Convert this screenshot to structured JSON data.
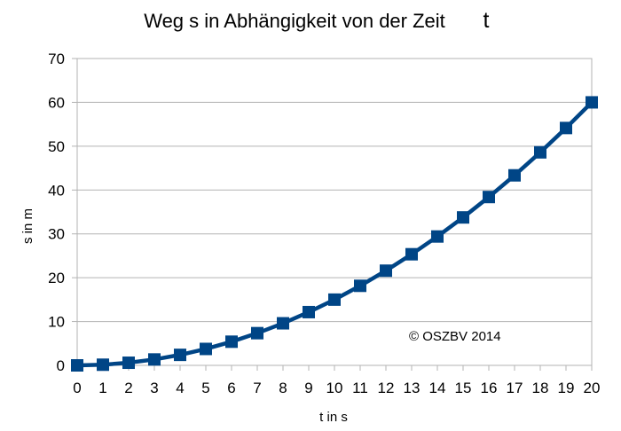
{
  "chart_data": {
    "type": "line",
    "title": "Weg s in Abhängigkeit von der Zeit",
    "title_suffix": "t",
    "xlabel": "t in s",
    "ylabel": "s in m",
    "annotation": "© OSZBV 2014",
    "x": [
      0,
      1,
      2,
      3,
      4,
      5,
      6,
      7,
      8,
      9,
      10,
      11,
      12,
      13,
      14,
      15,
      16,
      17,
      18,
      19,
      20
    ],
    "series": [
      {
        "values": [
          0,
          0.15,
          0.6,
          1.35,
          2.4,
          3.75,
          5.4,
          7.35,
          9.6,
          12.15,
          15,
          18.15,
          21.6,
          25.35,
          29.4,
          33.75,
          38.4,
          43.35,
          48.6,
          54.15,
          60
        ],
        "color": "#004586",
        "marker": "square"
      }
    ],
    "xlim": [
      0,
      20
    ],
    "ylim": [
      0,
      70
    ],
    "xticks": [
      "0",
      "1",
      "2",
      "3",
      "4",
      "5",
      "6",
      "7",
      "8",
      "9",
      "10",
      "11",
      "12",
      "13",
      "14",
      "15",
      "16",
      "17",
      "18",
      "19",
      "20"
    ],
    "yticks": [
      "0",
      "10",
      "20",
      "30",
      "40",
      "50",
      "60",
      "70"
    ],
    "grid": "horizontal",
    "legend": "none"
  }
}
